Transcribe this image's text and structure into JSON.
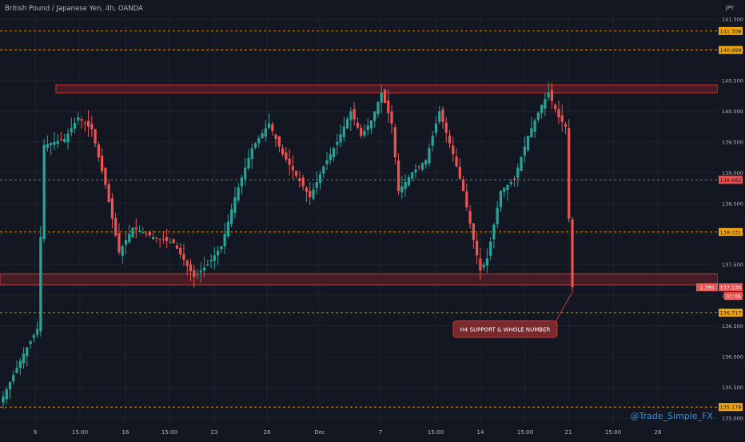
{
  "colors": {
    "background": "#131722",
    "grid": "#1e2230",
    "up": "#26a69a",
    "down": "#ef5350",
    "level_line": "#c9a227",
    "zone_fill": "#5a1f25",
    "zone_stroke": "#c23b3f",
    "text": "#b2b5be",
    "watermark": "#2f8fd6",
    "price_box": "#ef5350"
  },
  "chart_data": {
    "type": "candlestick",
    "title": "British Pound / Japanese Yen, 4h, OANDA",
    "currency": "JPY",
    "ylim": [
      134.92,
      141.58
    ],
    "y_ticks": [
      "135.000",
      "135.500",
      "136.000",
      "136.500",
      "137.000",
      "137.500",
      "138.000",
      "138.500",
      "139.000",
      "139.500",
      "140.000",
      "140.500",
      "141.000",
      "141.500"
    ],
    "x_ticks": [
      "9",
      "15:00",
      "16",
      "15:00",
      "23",
      "26",
      "Dec",
      "7",
      "15:00",
      "14",
      "15:00",
      "21",
      "15:00",
      "28"
    ],
    "levels": [
      {
        "price": 141.308,
        "label": "141.308",
        "color": "#f0a30a"
      },
      {
        "price": 140.999,
        "label": "140.999",
        "color": "#f0a30a"
      },
      {
        "price": 138.882,
        "label": "138.882",
        "color": "#ef5350"
      },
      {
        "price": 138.031,
        "label": "138.031",
        "color": "#f0a30a"
      },
      {
        "price": 136.717,
        "label": "136.717",
        "color": "#f0a30a"
      },
      {
        "price": 135.178,
        "label": "135.178",
        "color": "#f0a30a"
      }
    ],
    "zones": [
      {
        "name": "resistance",
        "from": 140.3,
        "to": 140.43
      },
      {
        "name": "support",
        "from": 137.17,
        "to": 137.35
      }
    ],
    "current": {
      "spread": "1.395",
      "price": "137.130",
      "countdown": "01:06"
    },
    "annotation": "H4 SUPPORT & WHOLE NUMBER",
    "watermark": "@Trade_Simple_FX",
    "anchors": [
      {
        "i": 0,
        "v": 135.35
      },
      {
        "i": 6,
        "v": 136.05
      },
      {
        "i": 10,
        "v": 136.45
      },
      {
        "i": 12,
        "v": 139.45
      },
      {
        "i": 18,
        "v": 139.55
      },
      {
        "i": 22,
        "v": 139.9
      },
      {
        "i": 26,
        "v": 139.7
      },
      {
        "i": 30,
        "v": 138.8
      },
      {
        "i": 34,
        "v": 137.7
      },
      {
        "i": 38,
        "v": 138.1
      },
      {
        "i": 44,
        "v": 137.95
      },
      {
        "i": 50,
        "v": 137.85
      },
      {
        "i": 56,
        "v": 137.3
      },
      {
        "i": 60,
        "v": 137.5
      },
      {
        "i": 64,
        "v": 137.8
      },
      {
        "i": 68,
        "v": 138.6
      },
      {
        "i": 73,
        "v": 139.4
      },
      {
        "i": 78,
        "v": 139.8
      },
      {
        "i": 82,
        "v": 139.3
      },
      {
        "i": 86,
        "v": 138.95
      },
      {
        "i": 90,
        "v": 138.6
      },
      {
        "i": 94,
        "v": 139.1
      },
      {
        "i": 98,
        "v": 139.5
      },
      {
        "i": 102,
        "v": 140.0
      },
      {
        "i": 105,
        "v": 139.6
      },
      {
        "i": 108,
        "v": 139.85
      },
      {
        "i": 111,
        "v": 140.3
      },
      {
        "i": 114,
        "v": 139.8
      },
      {
        "i": 116,
        "v": 138.7
      },
      {
        "i": 120,
        "v": 139.0
      },
      {
        "i": 124,
        "v": 139.2
      },
      {
        "i": 128,
        "v": 140.0
      },
      {
        "i": 132,
        "v": 139.3
      },
      {
        "i": 135,
        "v": 138.7
      },
      {
        "i": 138,
        "v": 137.9
      },
      {
        "i": 140,
        "v": 137.4
      },
      {
        "i": 142,
        "v": 137.6
      },
      {
        "i": 146,
        "v": 138.7
      },
      {
        "i": 150,
        "v": 138.9
      },
      {
        "i": 154,
        "v": 139.6
      },
      {
        "i": 158,
        "v": 140.1
      },
      {
        "i": 160,
        "v": 140.3
      },
      {
        "i": 163,
        "v": 139.9
      },
      {
        "i": 165,
        "v": 139.75
      },
      {
        "i": 166,
        "v": 138.25
      },
      {
        "i": 167,
        "v": 137.13
      }
    ]
  }
}
